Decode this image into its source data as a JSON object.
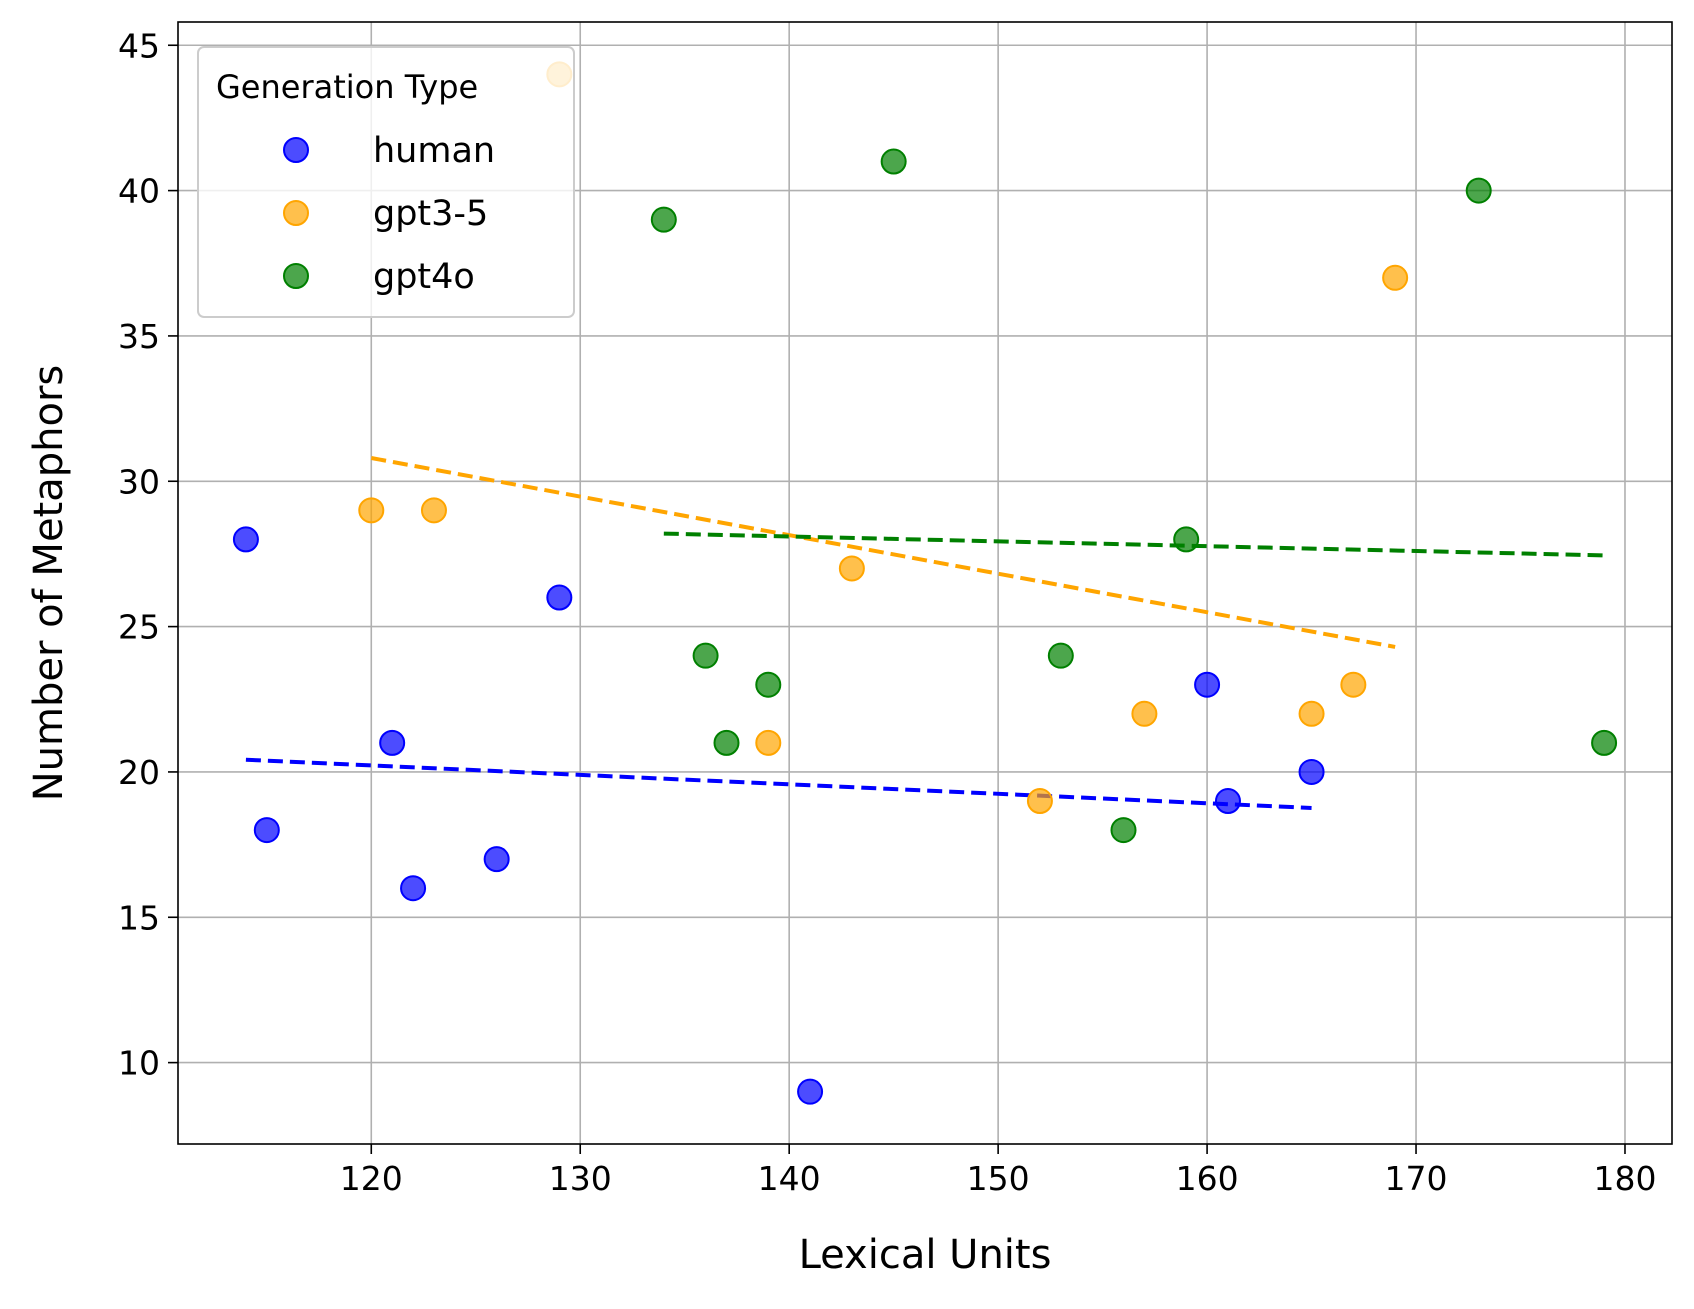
{
  "chart_data": {
    "type": "scatter",
    "title": "",
    "xlabel": "Lexical Units",
    "ylabel": "Number of Metaphors",
    "xlim": [
      110.75,
      182.25
    ],
    "ylim": [
      7.2,
      45.8
    ],
    "x_ticks": [
      120,
      130,
      140,
      150,
      160,
      170,
      180
    ],
    "y_ticks": [
      10,
      15,
      20,
      25,
      30,
      35,
      40,
      45
    ],
    "grid": true,
    "legend": {
      "title": "Generation Type",
      "placement": "top-left"
    },
    "series": [
      {
        "name": "human",
        "color": "#0000ff",
        "points": [
          [
            114,
            28
          ],
          [
            115,
            18
          ],
          [
            121,
            21
          ],
          [
            122,
            16
          ],
          [
            126,
            17
          ],
          [
            129,
            26
          ],
          [
            141,
            9
          ],
          [
            160,
            23
          ],
          [
            161,
            19
          ],
          [
            165,
            20
          ]
        ],
        "trend": {
          "x": [
            114,
            165
          ],
          "y": [
            20.42,
            18.76
          ]
        }
      },
      {
        "name": "gpt3-5",
        "color": "#ffa500",
        "points": [
          [
            120,
            29
          ],
          [
            123,
            29
          ],
          [
            129,
            44
          ],
          [
            139,
            21
          ],
          [
            143,
            27
          ],
          [
            152,
            19
          ],
          [
            157,
            22
          ],
          [
            165,
            22
          ],
          [
            167,
            23
          ],
          [
            169,
            37
          ]
        ],
        "trend": {
          "x": [
            120,
            169
          ],
          "y": [
            30.8,
            24.3
          ]
        }
      },
      {
        "name": "gpt4o",
        "color": "#008000",
        "points": [
          [
            134,
            39
          ],
          [
            136,
            24
          ],
          [
            137,
            21
          ],
          [
            139,
            23
          ],
          [
            145,
            41
          ],
          [
            153,
            24
          ],
          [
            156,
            18
          ],
          [
            159,
            28
          ],
          [
            173,
            40
          ],
          [
            179,
            21
          ]
        ],
        "trend": {
          "x": [
            134,
            179
          ],
          "y": [
            28.2,
            27.45
          ]
        }
      }
    ]
  }
}
